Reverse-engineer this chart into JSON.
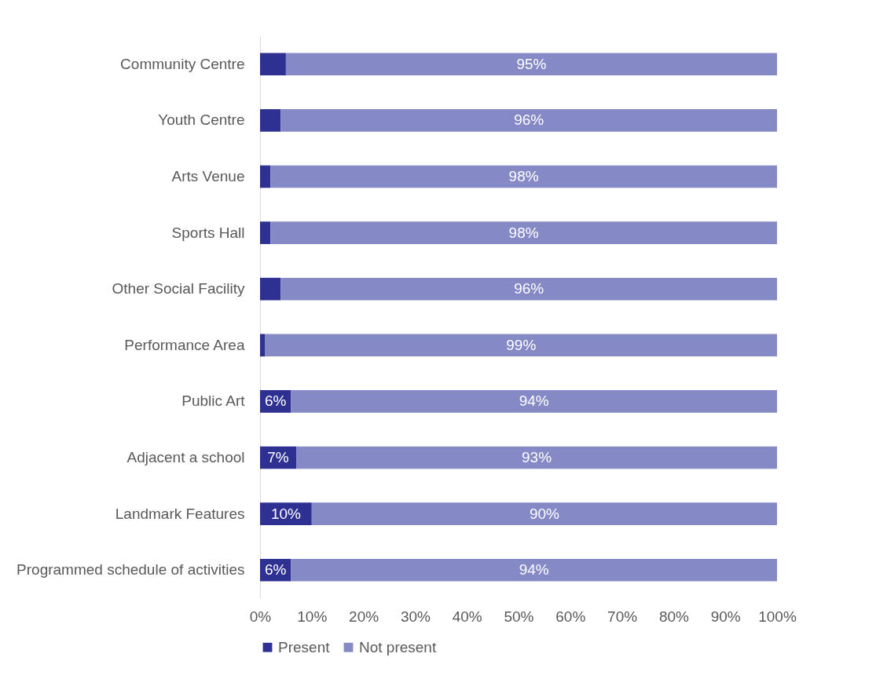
{
  "chart_data": {
    "type": "bar",
    "orientation": "horizontal",
    "stacked": true,
    "categories": [
      "Community Centre",
      "Youth Centre",
      "Arts Venue",
      "Sports Hall",
      "Other Social Facility",
      "Performance Area",
      "Public Art",
      "Adjacent a school",
      "Landmark Features",
      "Programmed schedule of activities"
    ],
    "series": [
      {
        "name": "Present",
        "color": "#2e3192",
        "values": [
          5,
          4,
          2,
          2,
          4,
          1,
          6,
          7,
          10,
          6
        ],
        "value_labels": [
          null,
          null,
          null,
          null,
          null,
          null,
          "6%",
          "7%",
          "10%",
          "6%"
        ]
      },
      {
        "name": "Not present",
        "color": "#8589c6",
        "values": [
          95,
          96,
          98,
          98,
          96,
          99,
          94,
          93,
          90,
          94
        ],
        "value_labels": [
          "95%",
          "96%",
          "98%",
          "98%",
          "96%",
          "99%",
          "94%",
          "93%",
          "90%",
          "94%"
        ]
      }
    ],
    "xlim": [
      0,
      100
    ],
    "xticks": [
      {
        "value": 0,
        "label": "0%"
      },
      {
        "value": 10,
        "label": "10%"
      },
      {
        "value": 20,
        "label": "20%"
      },
      {
        "value": 30,
        "label": "30%"
      },
      {
        "value": 40,
        "label": "40%"
      },
      {
        "value": 50,
        "label": "50%"
      },
      {
        "value": 60,
        "label": "60%"
      },
      {
        "value": 70,
        "label": "70%"
      },
      {
        "value": 80,
        "label": "80%"
      },
      {
        "value": 90,
        "label": "90%"
      },
      {
        "value": 100,
        "label": "100%"
      }
    ],
    "grid": false,
    "legend": "bottom"
  }
}
